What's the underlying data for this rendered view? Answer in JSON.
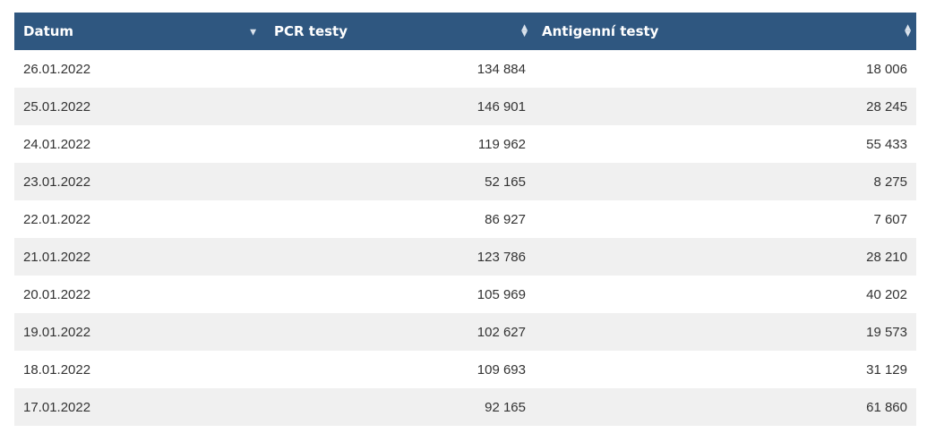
{
  "table": {
    "headers": {
      "date": "Datum",
      "pcr": "PCR testy",
      "antigen": "Antigenní testy"
    },
    "sort": {
      "date": "descending",
      "pcr": "none",
      "antigen": "none"
    },
    "rows": [
      {
        "date": "26.01.2022",
        "pcr": "134 884",
        "antigen": "18 006"
      },
      {
        "date": "25.01.2022",
        "pcr": "146 901",
        "antigen": "28 245"
      },
      {
        "date": "24.01.2022",
        "pcr": "119 962",
        "antigen": "55 433"
      },
      {
        "date": "23.01.2022",
        "pcr": "52 165",
        "antigen": "8 275"
      },
      {
        "date": "22.01.2022",
        "pcr": "86 927",
        "antigen": "7 607"
      },
      {
        "date": "21.01.2022",
        "pcr": "123 786",
        "antigen": "28 210"
      },
      {
        "date": "20.01.2022",
        "pcr": "105 969",
        "antigen": "40 202"
      },
      {
        "date": "19.01.2022",
        "pcr": "102 627",
        "antigen": "19 573"
      },
      {
        "date": "18.01.2022",
        "pcr": "109 693",
        "antigen": "31 129"
      },
      {
        "date": "17.01.2022",
        "pcr": "92 165",
        "antigen": "61 860"
      }
    ]
  },
  "icons": {
    "sort_desc": "sort-desc-icon",
    "sort_both": "sort-both-icon"
  },
  "colors": {
    "header_bg": "#2f5780",
    "header_text": "#ffffff",
    "row_alt_bg": "#f0f0f0",
    "cell_text": "#333333"
  }
}
